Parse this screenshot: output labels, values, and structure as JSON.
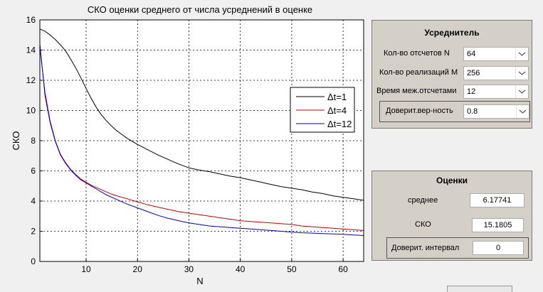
{
  "chart_data": {
    "type": "line",
    "title": "СКО оценки среднего от числа усреднений в оценке",
    "xlabel": "N",
    "ylabel": "СКО",
    "xlim": [
      1,
      64
    ],
    "ylim": [
      0,
      16
    ],
    "xticks": [
      10,
      20,
      30,
      40,
      50,
      60
    ],
    "yticks": [
      0,
      2,
      4,
      6,
      8,
      10,
      12,
      14,
      16
    ],
    "grid": true,
    "legend_position": "right",
    "series": [
      {
        "name": "Δt=1",
        "color": "#000000",
        "x": [
          1,
          2,
          3,
          4,
          5,
          6,
          7,
          8,
          9,
          10,
          11,
          12,
          13,
          14,
          15,
          16,
          17,
          18,
          19,
          20,
          22,
          24,
          26,
          28,
          30,
          32,
          34,
          36,
          38,
          40,
          42,
          44,
          46,
          48,
          50,
          52,
          54,
          56,
          58,
          60,
          62,
          64
        ],
        "y": [
          15.4,
          15.25,
          15.0,
          14.7,
          14.35,
          13.95,
          13.4,
          12.8,
          12.15,
          11.45,
          10.8,
          10.2,
          9.7,
          9.3,
          8.95,
          8.65,
          8.4,
          8.15,
          7.95,
          7.75,
          7.4,
          7.05,
          6.75,
          6.45,
          6.2,
          6.05,
          5.95,
          5.8,
          5.65,
          5.55,
          5.4,
          5.25,
          5.1,
          4.95,
          4.85,
          4.75,
          4.6,
          4.5,
          4.35,
          4.25,
          4.15,
          4.05
        ]
      },
      {
        "name": "Δt=4",
        "color": "#cc0000",
        "x": [
          1,
          2,
          3,
          4,
          5,
          6,
          7,
          8,
          9,
          10,
          11,
          12,
          13,
          14,
          15,
          16,
          18,
          20,
          22,
          24,
          26,
          28,
          30,
          32,
          34,
          36,
          38,
          40,
          42,
          44,
          46,
          48,
          50,
          52,
          54,
          56,
          58,
          60,
          62,
          64
        ],
        "y": [
          14.2,
          11.2,
          9.3,
          8.0,
          7.1,
          6.55,
          6.1,
          5.75,
          5.45,
          5.25,
          5.05,
          4.9,
          4.75,
          4.6,
          4.45,
          4.35,
          4.15,
          3.95,
          3.75,
          3.6,
          3.45,
          3.3,
          3.2,
          3.1,
          3.0,
          2.9,
          2.8,
          2.7,
          2.65,
          2.6,
          2.55,
          2.5,
          2.45,
          2.35,
          2.3,
          2.25,
          2.2,
          2.15,
          2.1,
          2.05
        ]
      },
      {
        "name": "Δt=12",
        "color": "#0000cc",
        "x": [
          1,
          2,
          3,
          4,
          5,
          6,
          7,
          8,
          9,
          10,
          11,
          12,
          13,
          14,
          15,
          16,
          18,
          20,
          22,
          24,
          26,
          28,
          30,
          32,
          34,
          36,
          38,
          40,
          42,
          44,
          46,
          48,
          50,
          52,
          54,
          56,
          58,
          60,
          62,
          64
        ],
        "y": [
          14.4,
          11.0,
          9.2,
          7.95,
          7.05,
          6.5,
          6.05,
          5.7,
          5.4,
          5.2,
          5.0,
          4.8,
          4.6,
          4.4,
          4.25,
          4.1,
          3.8,
          3.55,
          3.3,
          3.05,
          2.85,
          2.7,
          2.55,
          2.45,
          2.35,
          2.3,
          2.25,
          2.2,
          2.15,
          2.1,
          2.05,
          2.0,
          1.95,
          1.9,
          1.88,
          1.85,
          1.82,
          1.8,
          1.75,
          1.72
        ]
      }
    ]
  },
  "averager": {
    "title": "Усреднитель",
    "rows": [
      {
        "label": "Кол-во отсчетов N",
        "value": "64"
      },
      {
        "label": "Кол-во реализаций M",
        "value": "256"
      },
      {
        "label": "Время меж.отсчетами",
        "value": "12"
      },
      {
        "label": "Доверит.вер-ность",
        "value": "0.8"
      }
    ]
  },
  "estimates": {
    "title": "Оценки",
    "mean_label": "среднее",
    "mean_value": "6.17741",
    "sko_label": "СКО",
    "sko_value": "15.1805",
    "interval_label": "Доверит. интервал",
    "interval_value": "0"
  }
}
